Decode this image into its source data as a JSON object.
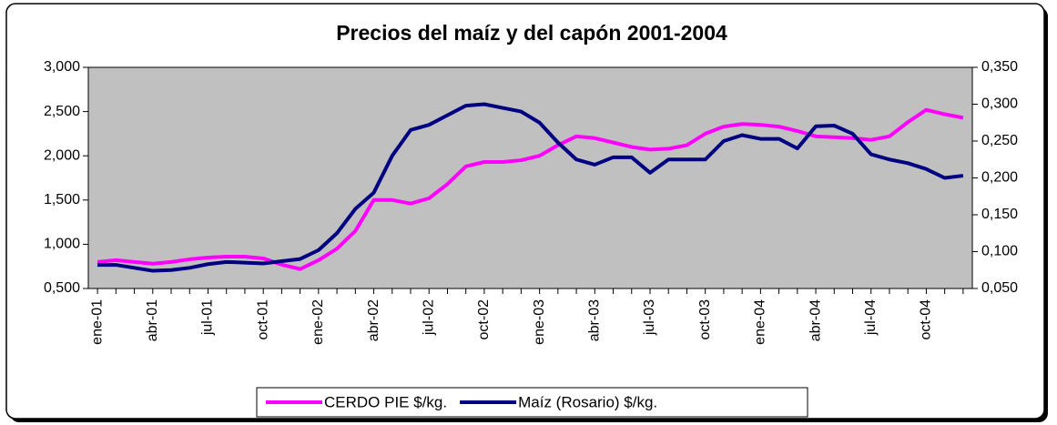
{
  "chart_data": {
    "type": "line",
    "title": "Precios del maíz y del capón 2001-2004",
    "categories": [
      "ene-01",
      null,
      null,
      "abr-01",
      null,
      null,
      "jul-01",
      null,
      null,
      "oct-01",
      null,
      null,
      "ene-02",
      null,
      null,
      "abr-02",
      null,
      null,
      "jul-02",
      null,
      null,
      "oct-02",
      null,
      null,
      "ene-03",
      null,
      null,
      "abr-03",
      null,
      null,
      "jul-03",
      null,
      null,
      "oct-03",
      null,
      null,
      "ene-04",
      null,
      null,
      "abr-04",
      null,
      null,
      "jul-04",
      null,
      null,
      "oct-04",
      null,
      null
    ],
    "series": [
      {
        "name": "CERDO PIE $/kg.",
        "color": "#ff00ff",
        "values": [
          0.8,
          0.82,
          0.8,
          0.78,
          0.8,
          0.83,
          0.85,
          0.86,
          0.86,
          0.84,
          0.77,
          0.72,
          0.82,
          0.95,
          1.15,
          1.5,
          1.5,
          1.46,
          1.52,
          1.68,
          1.88,
          1.93,
          1.93,
          1.95,
          2.0,
          2.12,
          2.22,
          2.2,
          2.15,
          2.1,
          2.07,
          2.08,
          2.12,
          2.25,
          2.33,
          2.36,
          2.35,
          2.33,
          2.28,
          2.22,
          2.21,
          2.2,
          2.18,
          2.22,
          2.38,
          2.52,
          2.47,
          2.43
        ]
      },
      {
        "name": "Maíz (Rosario) $/kg.",
        "color": "#000080",
        "axis": "y2",
        "values": [
          0.082,
          0.082,
          0.078,
          0.074,
          0.075,
          0.078,
          0.083,
          0.086,
          0.085,
          0.084,
          0.087,
          0.09,
          0.102,
          0.125,
          0.158,
          0.18,
          0.23,
          0.265,
          0.272,
          0.285,
          0.298,
          0.3,
          0.295,
          0.29,
          0.275,
          0.248,
          0.225,
          0.218,
          0.228,
          0.228,
          0.207,
          0.225,
          0.225,
          0.225,
          0.25,
          0.258,
          0.253,
          0.253,
          0.24,
          0.27,
          0.271,
          0.26,
          0.232,
          0.225,
          0.22,
          0.212,
          0.2,
          0.203
        ]
      }
    ],
    "ylim": [
      0.5,
      3.0
    ],
    "yticks": [
      {
        "value": 0.5,
        "label": "0,500"
      },
      {
        "value": 1.0,
        "label": "1,000"
      },
      {
        "value": 1.5,
        "label": "1,500"
      },
      {
        "value": 2.0,
        "label": "2,000"
      },
      {
        "value": 2.5,
        "label": "2,500"
      },
      {
        "value": 3.0,
        "label": "3,000"
      }
    ],
    "y2lim": [
      0.05,
      0.35
    ],
    "y2ticks": [
      {
        "value": 0.05,
        "label": "0,050"
      },
      {
        "value": 0.1,
        "label": "0,100"
      },
      {
        "value": 0.15,
        "label": "0,150"
      },
      {
        "value": 0.2,
        "label": "0,200"
      },
      {
        "value": 0.25,
        "label": "0,250"
      },
      {
        "value": 0.3,
        "label": "0,300"
      },
      {
        "value": 0.35,
        "label": "0,350"
      }
    ],
    "legend": "bottom",
    "plot_background": "#c0c0c0"
  }
}
